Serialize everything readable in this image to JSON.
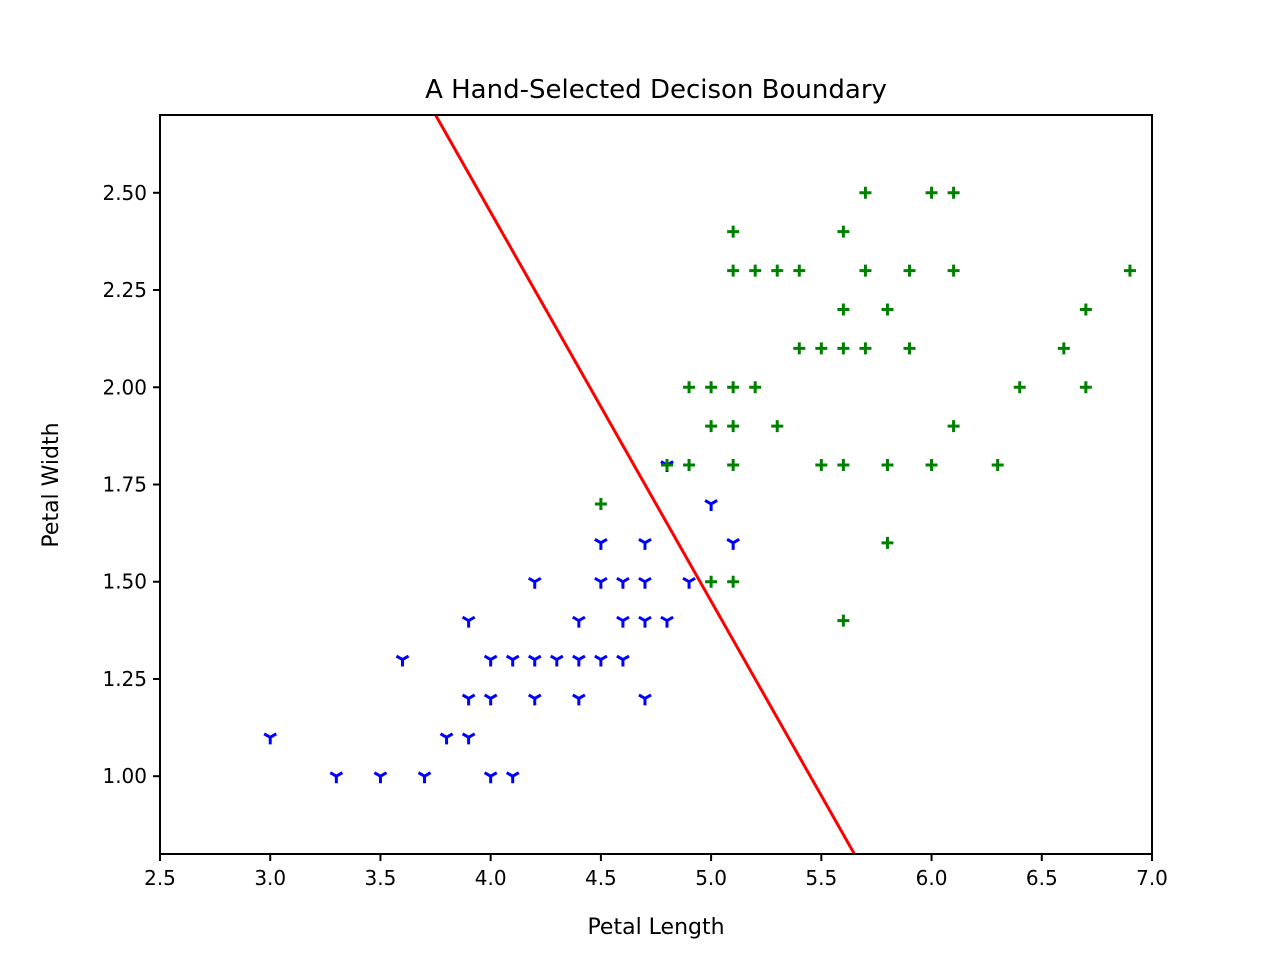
{
  "chart_data": {
    "type": "scatter",
    "title": "A Hand-Selected Decison Boundary",
    "xlabel": "Petal Length",
    "ylabel": "Petal Width",
    "xlim": [
      2.5,
      7.0
    ],
    "ylim": [
      0.8,
      2.7
    ],
    "xticks": [
      "2.5",
      "3.0",
      "3.5",
      "4.0",
      "4.5",
      "5.0",
      "5.5",
      "6.0",
      "6.5",
      "7.0"
    ],
    "yticks": [
      "1.00",
      "1.25",
      "1.50",
      "1.75",
      "2.00",
      "2.25",
      "2.50"
    ],
    "grid": false,
    "series": [
      {
        "marker": "tri-down",
        "color": "#0000ff",
        "points": [
          [
            3.0,
            1.1
          ],
          [
            3.3,
            1.0
          ],
          [
            3.5,
            1.0
          ],
          [
            3.6,
            1.3
          ],
          [
            3.7,
            1.0
          ],
          [
            3.8,
            1.1
          ],
          [
            3.9,
            1.4
          ],
          [
            3.9,
            1.2
          ],
          [
            3.9,
            1.1
          ],
          [
            4.0,
            1.3
          ],
          [
            4.0,
            1.2
          ],
          [
            4.0,
            1.0
          ],
          [
            4.1,
            1.3
          ],
          [
            4.1,
            1.0
          ],
          [
            4.2,
            1.5
          ],
          [
            4.2,
            1.3
          ],
          [
            4.2,
            1.2
          ],
          [
            4.3,
            1.3
          ],
          [
            4.4,
            1.4
          ],
          [
            4.4,
            1.3
          ],
          [
            4.4,
            1.2
          ],
          [
            4.5,
            1.6
          ],
          [
            4.5,
            1.5
          ],
          [
            4.5,
            1.3
          ],
          [
            4.6,
            1.5
          ],
          [
            4.6,
            1.4
          ],
          [
            4.6,
            1.3
          ],
          [
            4.7,
            1.6
          ],
          [
            4.7,
            1.5
          ],
          [
            4.7,
            1.4
          ],
          [
            4.7,
            1.2
          ],
          [
            4.8,
            1.8
          ],
          [
            4.8,
            1.4
          ],
          [
            4.9,
            1.5
          ],
          [
            5.0,
            1.7
          ],
          [
            5.1,
            1.6
          ]
        ]
      },
      {
        "marker": "plus",
        "color": "#008000",
        "points": [
          [
            4.5,
            1.7
          ],
          [
            4.8,
            1.8
          ],
          [
            4.9,
            2.0
          ],
          [
            4.9,
            1.8
          ],
          [
            5.0,
            2.0
          ],
          [
            5.0,
            1.9
          ],
          [
            5.0,
            1.5
          ],
          [
            5.1,
            2.4
          ],
          [
            5.1,
            2.3
          ],
          [
            5.1,
            2.0
          ],
          [
            5.1,
            1.9
          ],
          [
            5.1,
            1.8
          ],
          [
            5.1,
            1.5
          ],
          [
            5.2,
            2.3
          ],
          [
            5.2,
            2.0
          ],
          [
            5.3,
            2.3
          ],
          [
            5.3,
            1.9
          ],
          [
            5.4,
            2.3
          ],
          [
            5.4,
            2.1
          ],
          [
            5.5,
            2.1
          ],
          [
            5.5,
            1.8
          ],
          [
            5.6,
            2.4
          ],
          [
            5.6,
            2.2
          ],
          [
            5.6,
            2.1
          ],
          [
            5.6,
            1.8
          ],
          [
            5.6,
            1.4
          ],
          [
            5.7,
            2.5
          ],
          [
            5.7,
            2.3
          ],
          [
            5.7,
            2.1
          ],
          [
            5.8,
            2.2
          ],
          [
            5.8,
            1.8
          ],
          [
            5.8,
            1.6
          ],
          [
            5.9,
            2.3
          ],
          [
            5.9,
            2.1
          ],
          [
            6.0,
            2.5
          ],
          [
            6.0,
            1.8
          ],
          [
            6.1,
            2.5
          ],
          [
            6.1,
            2.3
          ],
          [
            6.1,
            1.9
          ],
          [
            6.3,
            1.8
          ],
          [
            6.4,
            2.0
          ],
          [
            6.6,
            2.1
          ],
          [
            6.7,
            2.2
          ],
          [
            6.7,
            2.0
          ],
          [
            6.9,
            2.3
          ]
        ]
      }
    ],
    "decision_line": {
      "color": "#ff0000",
      "points": [
        [
          3.75,
          2.7
        ],
        [
          5.65,
          0.8
        ]
      ]
    }
  }
}
